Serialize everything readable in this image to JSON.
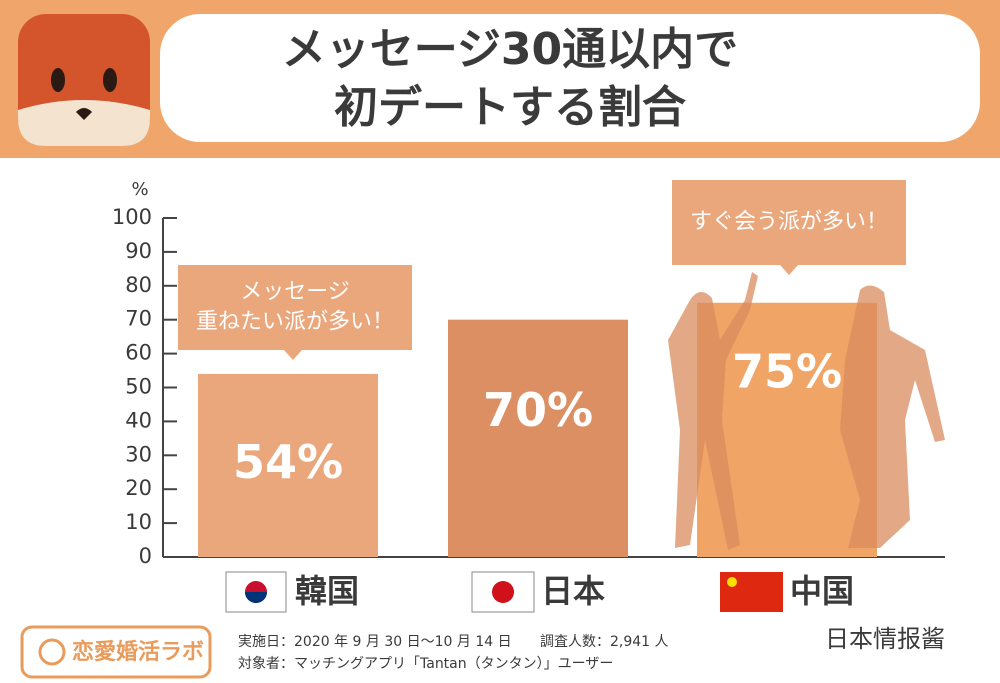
{
  "chart_data": {
    "type": "bar",
    "title_lines": [
      "メッセージ30通以内で",
      "初デートする割合"
    ],
    "y_unit": "%",
    "categories": [
      "韓国",
      "日本",
      "中国"
    ],
    "values": [
      54,
      70,
      75
    ],
    "value_labels": [
      "54%",
      "70%",
      "75%"
    ],
    "colors": [
      "#eba77c",
      "#dc8f62",
      "#f0a566"
    ],
    "ylim": [
      0,
      100
    ],
    "yticks": [
      0,
      10,
      20,
      30,
      40,
      50,
      60,
      70,
      80,
      90,
      100
    ],
    "annotations": [
      {
        "lines": [
          "メッセージ",
          "重ねたい派が多い！"
        ]
      },
      {
        "lines": [
          "すぐ会う派が多い！"
        ]
      }
    ]
  },
  "footer": {
    "date": "実施日：2020 年 9 月 30 日〜10 月 14 日",
    "count": "調査人数：2,941 人",
    "target": "対象者：マッチングアプリ「Tantan（タンタン）」ユーザー"
  },
  "logo": "恋愛婚活ラボ",
  "watermark": "日本情报酱"
}
